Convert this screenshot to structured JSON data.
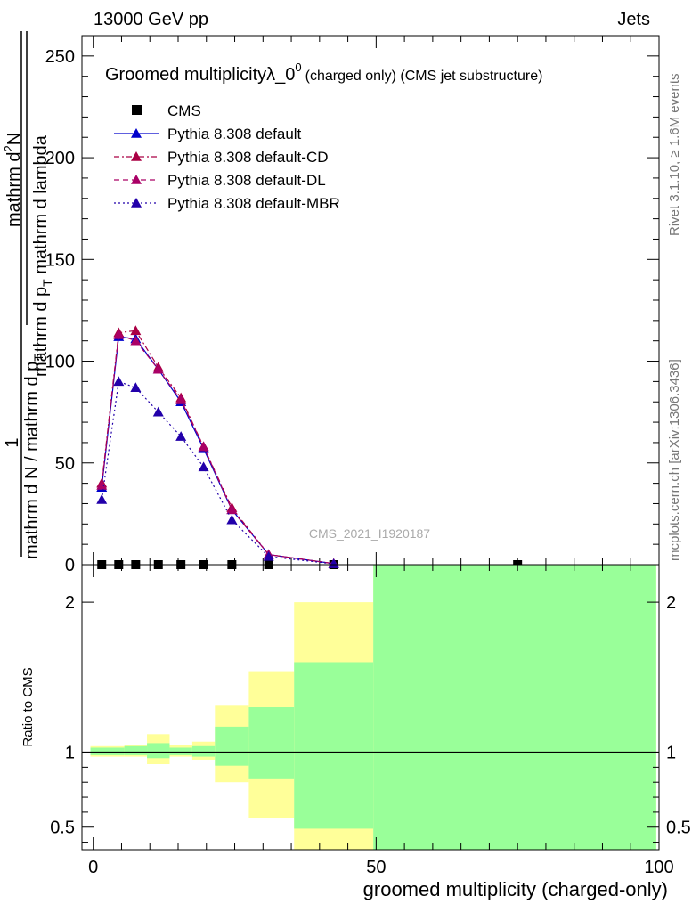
{
  "header": {
    "energy": "13000 GeV pp",
    "category": "Jets"
  },
  "side_labels": {
    "rivet": "Rivet 3.1.10, ≥ 1.6M events",
    "mcplots": "mcplots.cern.ch [arXiv:1306.3436]"
  },
  "chart_data": [
    {
      "type": "line",
      "title_main": "Groomed multiplicityλ_0",
      "title_sup": "0",
      "title_note": "(charged only) (CMS jet substructure)",
      "ylabel_parts": {
        "one": "1",
        "denominator": "mathrm d N / mathrm d p",
        "denominator_sub": "T",
        "numerator_pre": "mathrm d",
        "numerator_sup": "2",
        "numerator_post": "N",
        "fraction": "mathrm d p",
        "fraction_sub": "T",
        "fraction_post": " mathrm d lambda"
      },
      "watermark": "CMS_2021_I1920187",
      "xlim": [
        -2,
        100
      ],
      "ylim": [
        0,
        260
      ],
      "yticks": [
        0,
        50,
        100,
        150,
        200,
        250
      ],
      "legend_position": "top-left",
      "series": [
        {
          "name": "CMS",
          "style": "markers",
          "marker": "square",
          "color": "#000000",
          "x": [
            1.5,
            4.5,
            7.5,
            11.5,
            15.5,
            19.5,
            24.5,
            31,
            42.5,
            75
          ],
          "y": [
            0,
            0,
            0,
            0,
            0,
            0,
            0,
            0,
            0,
            0
          ]
        },
        {
          "name": "Pythia 8.308 default",
          "style": "solid",
          "marker": "triangle",
          "color": "#0000cc",
          "x": [
            1.5,
            4.5,
            7.5,
            11.5,
            15.5,
            19.5,
            24.5,
            31,
            42.5
          ],
          "y": [
            38,
            112,
            111,
            96,
            80,
            57,
            27,
            5,
            0.5
          ]
        },
        {
          "name": "Pythia 8.308 default-CD",
          "style": "dashdot",
          "marker": "triangle",
          "color": "#aa0044",
          "x": [
            1.5,
            4.5,
            7.5,
            11.5,
            15.5,
            19.5,
            24.5,
            31,
            42.5
          ],
          "y": [
            40,
            114,
            115,
            97,
            82,
            58,
            28,
            5,
            0.5
          ]
        },
        {
          "name": "Pythia 8.308 default-DL",
          "style": "dashed",
          "marker": "triangle",
          "color": "#aa0066",
          "x": [
            1.5,
            4.5,
            7.5,
            11.5,
            15.5,
            19.5,
            24.5,
            31,
            42.5
          ],
          "y": [
            39,
            113,
            110,
            96,
            81,
            58,
            27,
            5,
            0.5
          ]
        },
        {
          "name": "Pythia 8.308 default-MBR",
          "style": "dotted",
          "marker": "triangle",
          "color": "#2200aa",
          "x": [
            1.5,
            4.5,
            7.5,
            11.5,
            15.5,
            19.5,
            24.5,
            31,
            42.5
          ],
          "y": [
            32,
            90,
            87,
            75,
            63,
            48,
            22,
            4,
            0.4
          ]
        }
      ]
    },
    {
      "type": "area",
      "ylabel": "Ratio to CMS",
      "xlabel": "groomed multiplicity (charged-only)",
      "xlim": [
        -2,
        100
      ],
      "ylim": [
        0.35,
        2.25
      ],
      "xticks": [
        0,
        50,
        100
      ],
      "yticks": [
        0.5,
        1,
        2
      ],
      "reference_line": 1,
      "bands": [
        {
          "x0": -0.5,
          "x1": 5.5,
          "yellow": [
            0.97,
            1.04
          ],
          "green": [
            0.98,
            1.03
          ]
        },
        {
          "x0": 5.5,
          "x1": 9.5,
          "yellow": [
            0.97,
            1.05
          ],
          "green": [
            0.98,
            1.04
          ]
        },
        {
          "x0": 9.5,
          "x1": 13.5,
          "yellow": [
            0.92,
            1.12
          ],
          "green": [
            0.96,
            1.06
          ]
        },
        {
          "x0": 13.5,
          "x1": 17.5,
          "yellow": [
            0.97,
            1.05
          ],
          "green": [
            0.98,
            1.03
          ]
        },
        {
          "x0": 17.5,
          "x1": 21.5,
          "yellow": [
            0.95,
            1.07
          ],
          "green": [
            0.97,
            1.04
          ]
        },
        {
          "x0": 21.5,
          "x1": 27.5,
          "yellow": [
            0.8,
            1.31
          ],
          "green": [
            0.91,
            1.17
          ]
        },
        {
          "x0": 27.5,
          "x1": 35.5,
          "yellow": [
            0.56,
            1.54
          ],
          "green": [
            0.82,
            1.3
          ]
        },
        {
          "x0": 35.5,
          "x1": 49.5,
          "yellow": [
            0.35,
            2.0
          ],
          "green": [
            0.49,
            1.6
          ]
        },
        {
          "x0": 49.5,
          "x1": 99.5,
          "yellow": [
            0.35,
            2.25
          ],
          "green": [
            0.35,
            2.25
          ]
        }
      ],
      "band_colors": {
        "yellow": "#ffff99",
        "green": "#99ff99"
      }
    }
  ]
}
